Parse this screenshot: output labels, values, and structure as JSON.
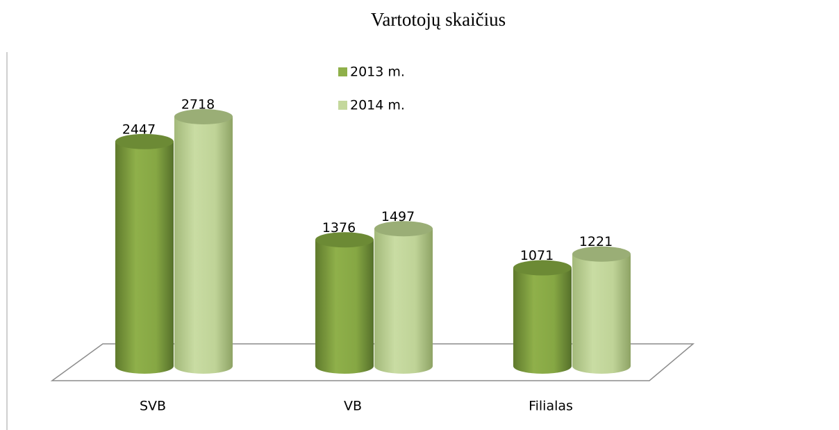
{
  "chart_data": {
    "type": "cylinder_bar",
    "title": "Vartotojų skaičius",
    "categories": [
      "SVB",
      "VB",
      "Filialas"
    ],
    "series": [
      {
        "name": "2013 m.",
        "color": "#8fb04a",
        "values": [
          2447,
          1376,
          1071
        ]
      },
      {
        "name": "2014 m.",
        "color": "#c4d89c",
        "values": [
          2718,
          1497,
          1221
        ]
      }
    ],
    "legend": "top-center"
  }
}
